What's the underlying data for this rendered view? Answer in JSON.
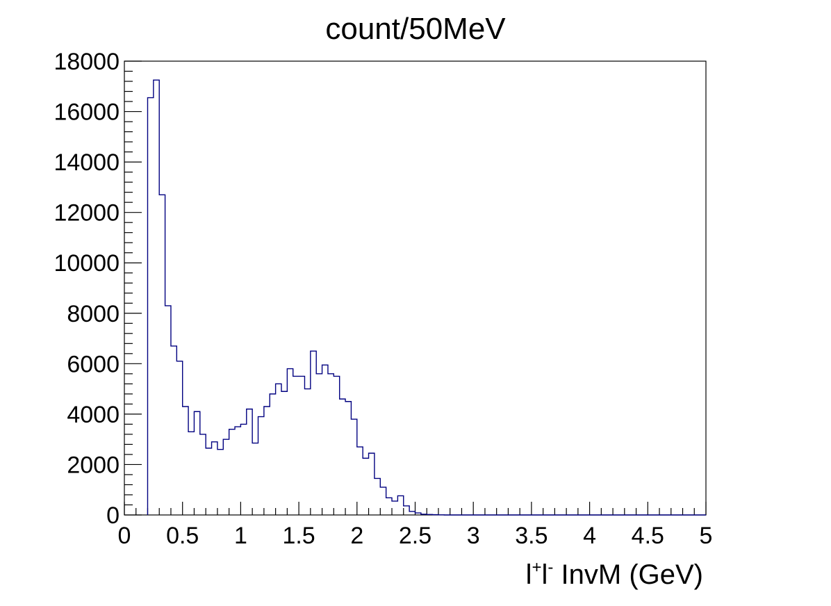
{
  "chart_data": {
    "type": "histogram",
    "title": "count/50MeV",
    "xlabel": {
      "base": "l",
      "sup_plus": "+",
      "mid": "l",
      "sup_minus": "-",
      "rest": " InvM (GeV)"
    },
    "ylabel": "",
    "xlim": [
      0,
      5
    ],
    "ylim": [
      0,
      18000
    ],
    "bin_width": 0.05,
    "x_ticks": [
      "0",
      "0.5",
      "1",
      "1.5",
      "2",
      "2.5",
      "3",
      "3.5",
      "4",
      "4.5",
      "5"
    ],
    "y_ticks": [
      "0",
      "2000",
      "4000",
      "6000",
      "8000",
      "10000",
      "12000",
      "14000",
      "16000",
      "18000"
    ],
    "grid": false,
    "line_color": "#000080",
    "bin_edges_start": 0.2,
    "values": [
      16550,
      17250,
      12700,
      8300,
      6700,
      6100,
      4300,
      3300,
      4100,
      3200,
      2650,
      2900,
      2600,
      3000,
      3400,
      3500,
      3600,
      4200,
      2850,
      3900,
      4300,
      4800,
      5200,
      4900,
      5800,
      5500,
      5500,
      5000,
      6500,
      5600,
      5950,
      5600,
      5500,
      4600,
      4500,
      3800,
      2700,
      2250,
      2450,
      1450,
      1100,
      680,
      550,
      760,
      360,
      140,
      80,
      30,
      20,
      10,
      5,
      0,
      0,
      0,
      0,
      0,
      0,
      0,
      0,
      0,
      0,
      0,
      0,
      0,
      0,
      0,
      0,
      0,
      0,
      0,
      0,
      0,
      0,
      0,
      0,
      0,
      0,
      0,
      0,
      0,
      0,
      0,
      0,
      0,
      0,
      0,
      0,
      0,
      0,
      0,
      0,
      0,
      0,
      0,
      0,
      0
    ]
  }
}
